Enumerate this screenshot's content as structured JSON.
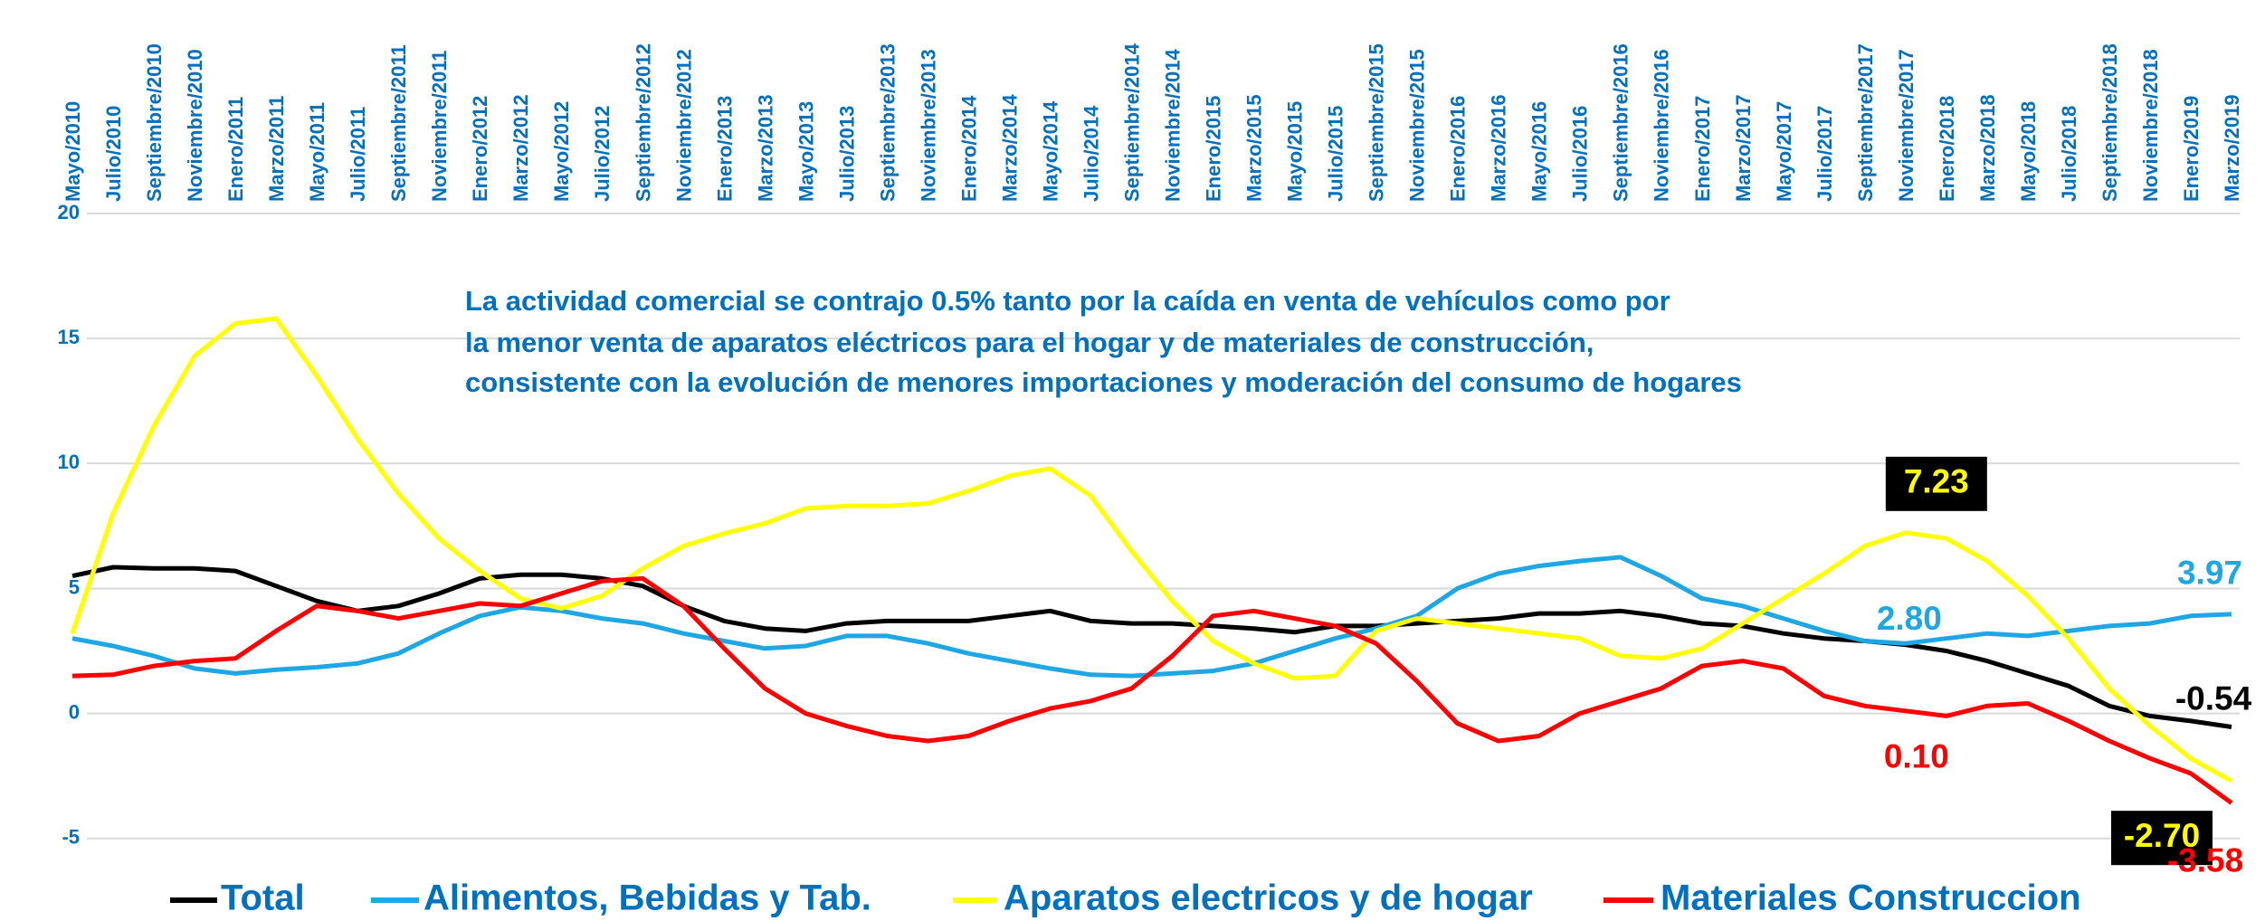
{
  "chart_data": {
    "type": "line",
    "annotation": [
      "La actividad comercial se contrajo 0.5% tanto por la caída en venta de vehículos como por",
      "la menor venta de aparatos eléctricos para el hogar y de materiales de construcción,",
      "consistente con la evolución de menores importaciones y moderación del consumo de hogares"
    ],
    "categories": [
      "Mayo/2010",
      "Julio/2010",
      "Septiembre/2010",
      "Noviembre/2010",
      "Enero/2011",
      "Marzo/2011",
      "Mayo/2011",
      "Julio/2011",
      "Septiembre/2011",
      "Noviembre/2011",
      "Enero/2012",
      "Marzo/2012",
      "Mayo/2012",
      "Julio/2012",
      "Septiembre/2012",
      "Noviembre/2012",
      "Enero/2013",
      "Marzo/2013",
      "Mayo/2013",
      "Julio/2013",
      "Septiembre/2013",
      "Noviembre/2013",
      "Enero/2014",
      "Marzo/2014",
      "Mayo/2014",
      "Julio/2014",
      "Septiembre/2014",
      "Noviembre/2014",
      "Enero/2015",
      "Marzo/2015",
      "Mayo/2015",
      "Julio/2015",
      "Septiembre/2015",
      "Noviembre/2015",
      "Enero/2016",
      "Marzo/2016",
      "Mayo/2016",
      "Julio/2016",
      "Septiembre/2016",
      "Noviembre/2016",
      "Enero/2017",
      "Marzo/2017",
      "Mayo/2017",
      "Julio/2017",
      "Septiembre/2017",
      "Noviembre/2017",
      "Enero/2018",
      "Marzo/2018",
      "Mayo/2018",
      "Julio/2018",
      "Septiembre/2018",
      "Noviembre/2018",
      "Enero/2019",
      "Marzo/2019"
    ],
    "series": [
      {
        "name": "Total",
        "color": "#000000",
        "values": [
          5.5,
          5.85,
          5.8,
          5.8,
          5.7,
          5.1,
          4.5,
          4.1,
          4.3,
          4.8,
          5.4,
          5.55,
          5.55,
          5.4,
          5.1,
          4.3,
          3.7,
          3.4,
          3.3,
          3.6,
          3.7,
          3.7,
          3.7,
          3.9,
          4.1,
          3.7,
          3.6,
          3.6,
          3.5,
          3.4,
          3.25,
          3.5,
          3.5,
          3.6,
          3.7,
          3.8,
          4.0,
          4.0,
          4.1,
          3.9,
          3.6,
          3.5,
          3.2,
          3.0,
          2.9,
          2.75,
          2.5,
          2.1,
          1.6,
          1.1,
          0.3,
          -0.1,
          -0.3,
          -0.54
        ],
        "value_labels": [
          null,
          null,
          null,
          null,
          null,
          null,
          null,
          null,
          null,
          null,
          null,
          null,
          null,
          null,
          null,
          null,
          null,
          null,
          null,
          null,
          null,
          null,
          null,
          null,
          null,
          null,
          null,
          null,
          null,
          null,
          null,
          null,
          null,
          null,
          null,
          null,
          null,
          null,
          null,
          null,
          null,
          null,
          null,
          null,
          null,
          null,
          null,
          null,
          null,
          null,
          null,
          null,
          null,
          "-0.54"
        ]
      },
      {
        "name": "Alimentos, Bebidas y Tab.",
        "color": "#1ea7e4",
        "values": [
          3.0,
          2.7,
          2.3,
          1.8,
          1.6,
          1.75,
          1.85,
          2.0,
          2.4,
          3.2,
          3.9,
          4.25,
          4.1,
          3.8,
          3.6,
          3.2,
          2.9,
          2.6,
          2.7,
          3.1,
          3.1,
          2.8,
          2.4,
          2.1,
          1.8,
          1.55,
          1.5,
          1.6,
          1.7,
          2.0,
          2.5,
          3.0,
          3.4,
          3.9,
          5.0,
          5.6,
          5.9,
          6.1,
          6.25,
          5.5,
          4.6,
          4.3,
          3.8,
          3.3,
          2.9,
          2.8,
          3.0,
          3.2,
          3.1,
          3.3,
          3.5,
          3.6,
          3.9,
          3.97
        ],
        "value_labels": [
          null,
          null,
          null,
          null,
          null,
          null,
          null,
          null,
          null,
          null,
          null,
          null,
          null,
          null,
          null,
          null,
          null,
          null,
          null,
          null,
          null,
          null,
          null,
          null,
          null,
          null,
          null,
          null,
          null,
          null,
          null,
          null,
          null,
          null,
          null,
          null,
          null,
          null,
          null,
          null,
          null,
          null,
          null,
          null,
          null,
          "2.80",
          null,
          null,
          null,
          null,
          null,
          null,
          null,
          "3.97"
        ]
      },
      {
        "name": "Aparatos electricos y de hogar",
        "color": "#ffff00",
        "values": [
          3.2,
          8,
          11.5,
          14.3,
          15.6,
          15.8,
          13.5,
          11,
          8.8,
          7.0,
          5.7,
          4.6,
          4.2,
          4.7,
          5.8,
          6.7,
          7.2,
          7.6,
          8.2,
          8.3,
          8.3,
          8.4,
          8.9,
          9.5,
          9.8,
          8.7,
          6.5,
          4.5,
          2.9,
          2.0,
          1.4,
          1.5,
          3.3,
          3.8,
          3.6,
          3.4,
          3.2,
          3.0,
          2.3,
          2.2,
          2.6,
          3.6,
          4.6,
          5.6,
          6.7,
          7.23,
          7.0,
          6.1,
          4.7,
          3.0,
          1.0,
          -0.5,
          -1.8,
          -2.7
        ],
        "value_labels": [
          null,
          null,
          null,
          null,
          null,
          null,
          null,
          null,
          null,
          null,
          null,
          null,
          null,
          null,
          null,
          null,
          null,
          null,
          null,
          null,
          null,
          null,
          null,
          null,
          null,
          null,
          null,
          null,
          null,
          null,
          null,
          null,
          null,
          null,
          null,
          null,
          null,
          null,
          null,
          null,
          null,
          null,
          null,
          null,
          null,
          "7.23",
          null,
          null,
          null,
          null,
          null,
          null,
          null,
          "-2.70"
        ]
      },
      {
        "name": "Materiales Construccion",
        "color": "#ff0000",
        "values": [
          1.5,
          1.55,
          1.9,
          2.1,
          2.2,
          3.3,
          4.3,
          4.1,
          3.8,
          4.1,
          4.4,
          4.3,
          4.8,
          5.3,
          5.4,
          4.3,
          2.6,
          1.0,
          0.0,
          -0.5,
          -0.9,
          -1.1,
          -0.9,
          -0.3,
          0.2,
          0.5,
          1.0,
          2.3,
          3.9,
          4.1,
          3.8,
          3.5,
          2.8,
          1.3,
          -0.4,
          -1.1,
          -0.9,
          0.0,
          0.5,
          1.0,
          1.9,
          2.1,
          1.8,
          0.7,
          0.3,
          0.1,
          -0.1,
          0.3,
          0.4,
          -0.3,
          -1.1,
          -1.8,
          -2.4,
          -3.58
        ],
        "value_labels": [
          null,
          null,
          null,
          null,
          null,
          null,
          null,
          null,
          null,
          null,
          null,
          null,
          null,
          null,
          null,
          null,
          null,
          null,
          null,
          null,
          null,
          null,
          null,
          null,
          null,
          null,
          null,
          null,
          null,
          null,
          null,
          null,
          null,
          null,
          null,
          null,
          null,
          null,
          null,
          null,
          null,
          null,
          null,
          null,
          null,
          "0.10",
          null,
          null,
          null,
          null,
          null,
          null,
          null,
          "-3.58"
        ]
      }
    ],
    "ylim": [
      -7,
      20
    ],
    "yticks": [
      -5,
      0,
      5,
      10,
      15,
      20
    ],
    "grid": true,
    "legend": "bottom"
  }
}
